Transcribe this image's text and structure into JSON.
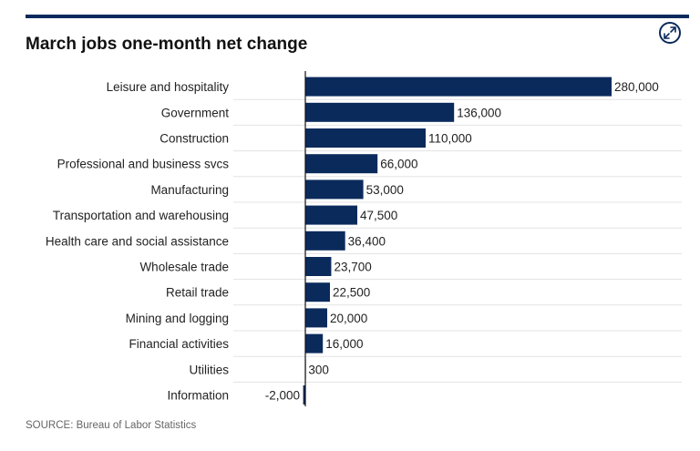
{
  "header": {
    "title": "March jobs one-month net change",
    "expand_icon": "expand-arrows-icon"
  },
  "colors": {
    "bar": "#0b2a5c",
    "rule": "#0b2a5c",
    "grid": "#e3e3e3",
    "label": "#222222"
  },
  "chart_data": {
    "type": "bar",
    "orientation": "horizontal",
    "title": "March jobs one-month net change",
    "xlabel": "",
    "ylabel": "",
    "categories": [
      "Leisure and hospitality",
      "Government",
      "Construction",
      "Professional and business svcs",
      "Manufacturing",
      "Transportation and warehousing",
      "Health care and social assistance",
      "Wholesale trade",
      "Retail trade",
      "Mining and logging",
      "Financial activities",
      "Utilities",
      "Information"
    ],
    "values": [
      280000,
      136000,
      110000,
      66000,
      53000,
      47500,
      36400,
      23700,
      22500,
      20000,
      16000,
      300,
      -2000
    ],
    "value_labels": [
      "280,000",
      "136,000",
      "110,000",
      "66,000",
      "53,000",
      "47,500",
      "36,400",
      "23,700",
      "22,500",
      "20,000",
      "16,000",
      "300",
      "-2,000"
    ],
    "xlim": [
      -65000,
      345000
    ],
    "grid": "horizontal row separators",
    "legend": "none"
  },
  "footer": {
    "source": "SOURCE: Bureau of Labor Statistics"
  }
}
